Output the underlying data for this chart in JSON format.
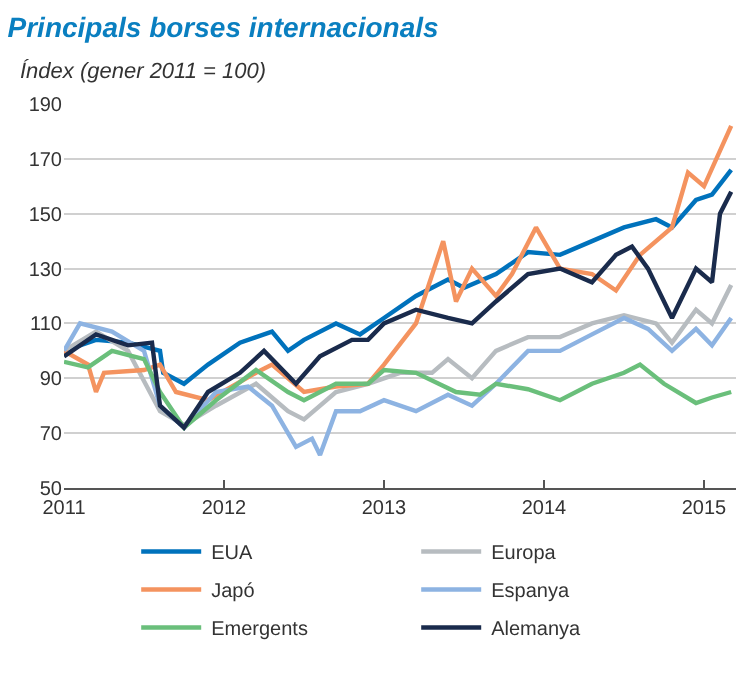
{
  "chart_data": {
    "type": "line",
    "title": "Principals borses internacionals",
    "subtitle": "Índex (gener 2011 = 100)",
    "xlim": [
      2011,
      2015.2
    ],
    "xticks": [
      2011,
      2012,
      2013,
      2014,
      2015
    ],
    "ylim": [
      50,
      190
    ],
    "yticks": [
      50,
      70,
      90,
      110,
      130,
      150,
      170,
      190
    ],
    "grid": "y",
    "legend": "bottom",
    "marker": "none",
    "line_style": "solid",
    "series": [
      {
        "name": "EUA",
        "color": "#0072bc",
        "x": [
          2011,
          2011.2,
          2011.4,
          2011.6,
          2011.62,
          2011.75,
          2011.9,
          2012.1,
          2012.3,
          2012.4,
          2012.5,
          2012.7,
          2012.85,
          2013.0,
          2013.2,
          2013.4,
          2013.5,
          2013.7,
          2013.9,
          2014.1,
          2014.3,
          2014.5,
          2014.7,
          2014.8,
          2014.95,
          2015.05,
          2015.17
        ],
        "values": [
          100,
          104,
          103,
          100,
          92,
          88,
          95,
          103,
          107,
          100,
          104,
          110,
          106,
          112,
          120,
          126,
          123,
          128,
          136,
          135,
          140,
          145,
          148,
          145,
          155,
          157,
          166
        ]
      },
      {
        "name": "Europa",
        "color": "#b7bcc0",
        "x": [
          2011,
          2011.2,
          2011.4,
          2011.6,
          2011.75,
          2011.95,
          2012.2,
          2012.4,
          2012.5,
          2012.7,
          2012.9,
          2013.1,
          2013.3,
          2013.4,
          2013.55,
          2013.7,
          2013.9,
          2014.1,
          2014.3,
          2014.5,
          2014.7,
          2014.8,
          2014.95,
          2015.05,
          2015.17
        ],
        "values": [
          100,
          107,
          100,
          78,
          73,
          80,
          88,
          78,
          75,
          85,
          88,
          92,
          92,
          97,
          90,
          100,
          105,
          105,
          110,
          113,
          110,
          103,
          115,
          110,
          124
        ]
      },
      {
        "name": "Japó",
        "color": "#f4935f",
        "x": [
          2011,
          2011.15,
          2011.2,
          2011.25,
          2011.5,
          2011.6,
          2011.7,
          2011.9,
          2012.2,
          2012.3,
          2012.5,
          2012.7,
          2012.9,
          2013.0,
          2013.2,
          2013.37,
          2013.45,
          2013.55,
          2013.7,
          2013.8,
          2013.95,
          2014.1,
          2014.3,
          2014.45,
          2014.6,
          2014.8,
          2014.9,
          2015.0,
          2015.17
        ],
        "values": [
          100,
          95,
          85,
          92,
          93,
          95,
          85,
          82,
          92,
          95,
          85,
          87,
          88,
          95,
          110,
          140,
          118,
          130,
          120,
          128,
          145,
          130,
          128,
          122,
          135,
          145,
          165,
          160,
          182
        ]
      },
      {
        "name": "Espanya",
        "color": "#8db3e2",
        "x": [
          2011,
          2011.1,
          2011.3,
          2011.5,
          2011.6,
          2011.75,
          2011.95,
          2012.15,
          2012.3,
          2012.45,
          2012.55,
          2012.6,
          2012.7,
          2012.85,
          2013.0,
          2013.2,
          2013.4,
          2013.55,
          2013.7,
          2013.9,
          2014.1,
          2014.3,
          2014.5,
          2014.65,
          2014.8,
          2014.95,
          2015.05,
          2015.17
        ],
        "values": [
          100,
          110,
          107,
          100,
          80,
          72,
          85,
          87,
          80,
          65,
          68,
          62,
          78,
          78,
          82,
          78,
          84,
          80,
          88,
          100,
          100,
          106,
          112,
          108,
          100,
          108,
          102,
          112
        ]
      },
      {
        "name": "Emergents",
        "color": "#6abf7b",
        "x": [
          2011,
          2011.15,
          2011.3,
          2011.5,
          2011.6,
          2011.75,
          2011.95,
          2012.2,
          2012.4,
          2012.5,
          2012.7,
          2012.9,
          2013.0,
          2013.2,
          2013.45,
          2013.6,
          2013.7,
          2013.9,
          2014.1,
          2014.3,
          2014.5,
          2014.6,
          2014.75,
          2014.95,
          2015.05,
          2015.17
        ],
        "values": [
          96,
          94,
          100,
          97,
          85,
          72,
          82,
          93,
          85,
          82,
          88,
          88,
          93,
          92,
          85,
          84,
          88,
          86,
          82,
          88,
          92,
          95,
          88,
          81,
          83,
          85
        ]
      },
      {
        "name": "Alemanya",
        "color": "#1a2b4c",
        "x": [
          2011,
          2011.2,
          2011.4,
          2011.55,
          2011.6,
          2011.75,
          2011.9,
          2012.1,
          2012.25,
          2012.45,
          2012.6,
          2012.8,
          2012.9,
          2013.0,
          2013.2,
          2013.4,
          2013.55,
          2013.7,
          2013.9,
          2014.1,
          2014.3,
          2014.45,
          2014.55,
          2014.65,
          2014.8,
          2014.95,
          2015.05,
          2015.1,
          2015.17
        ],
        "values": [
          98,
          106,
          102,
          103,
          80,
          72,
          85,
          92,
          100,
          88,
          98,
          104,
          104,
          110,
          115,
          112,
          110,
          118,
          128,
          130,
          125,
          135,
          138,
          130,
          112,
          130,
          125,
          150,
          158
        ]
      }
    ]
  }
}
